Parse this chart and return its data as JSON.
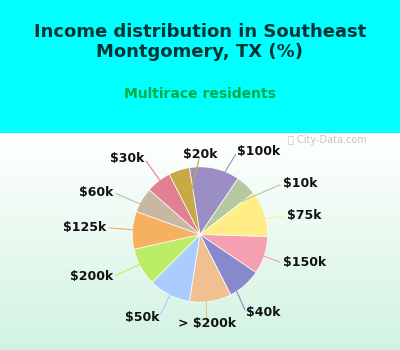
{
  "title": "Income distribution in Southeast\nMontgomery, TX (%)",
  "subtitle": "Multirace residents",
  "title_color": "#003333",
  "subtitle_color": "#00aa44",
  "background_top": "#00ffff",
  "background_bottom": "#d0f0e0",
  "watermark": "City-Data.com",
  "labels": [
    "$100k",
    "$10k",
    "$75k",
    "$150k",
    "$40k",
    "> $200k",
    "$50k",
    "$200k",
    "$125k",
    "$60k",
    "$30k",
    "$20k"
  ],
  "values": [
    12,
    5,
    11,
    9,
    8,
    10,
    10,
    9,
    9,
    6,
    6,
    5
  ],
  "colors": [
    "#9b8ec4",
    "#b5c9a0",
    "#ffee88",
    "#f4a0b0",
    "#8888cc",
    "#f0c090",
    "#aaccff",
    "#bbee66",
    "#f5b060",
    "#c8b8a0",
    "#e08090",
    "#c8aa44"
  ],
  "label_fontsize": 9,
  "figsize": [
    4.0,
    3.5
  ],
  "dpi": 100
}
